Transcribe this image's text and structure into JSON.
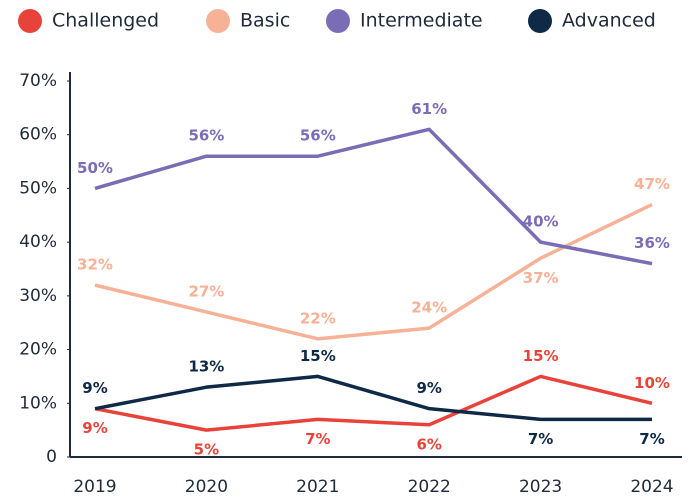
{
  "chart_data": {
    "type": "line",
    "categories": [
      "2019",
      "2020",
      "2021",
      "2022",
      "2023",
      "2024"
    ],
    "series": [
      {
        "name": "Challenged",
        "color": "#e8433a",
        "values": [
          9,
          5,
          7,
          6,
          15,
          10
        ],
        "value_labels": [
          "9%",
          "5%",
          "7%",
          "6%",
          "15%",
          "10%"
        ]
      },
      {
        "name": "Basic",
        "color": "#f6b196",
        "values": [
          32,
          27,
          22,
          24,
          37,
          47
        ],
        "value_labels": [
          "32%",
          "27%",
          "22%",
          "24%",
          "37%",
          "47%"
        ]
      },
      {
        "name": "Intermediate",
        "color": "#7b6db5",
        "values": [
          50,
          56,
          56,
          61,
          40,
          36
        ],
        "value_labels": [
          "50%",
          "56%",
          "56%",
          "61%",
          "40%",
          "36%"
        ]
      },
      {
        "name": "Advanced",
        "color": "#0e2a47",
        "values": [
          9,
          13,
          15,
          9,
          7,
          7
        ],
        "value_labels": [
          "9%",
          "13%",
          "15%",
          "9%",
          "7%",
          "7%"
        ]
      }
    ],
    "ylim": [
      0,
      70
    ],
    "yticks": [
      0,
      {
        "value": 10,
        "label": "10%"
      },
      {
        "value": 20,
        "label": "20%"
      },
      {
        "value": 30,
        "label": "30%"
      },
      {
        "value": 40,
        "label": "40%"
      },
      {
        "value": 50,
        "label": "50%"
      },
      {
        "value": 60,
        "label": "60%"
      },
      {
        "value": 70,
        "label": "70%"
      }
    ],
    "legend": "top"
  }
}
